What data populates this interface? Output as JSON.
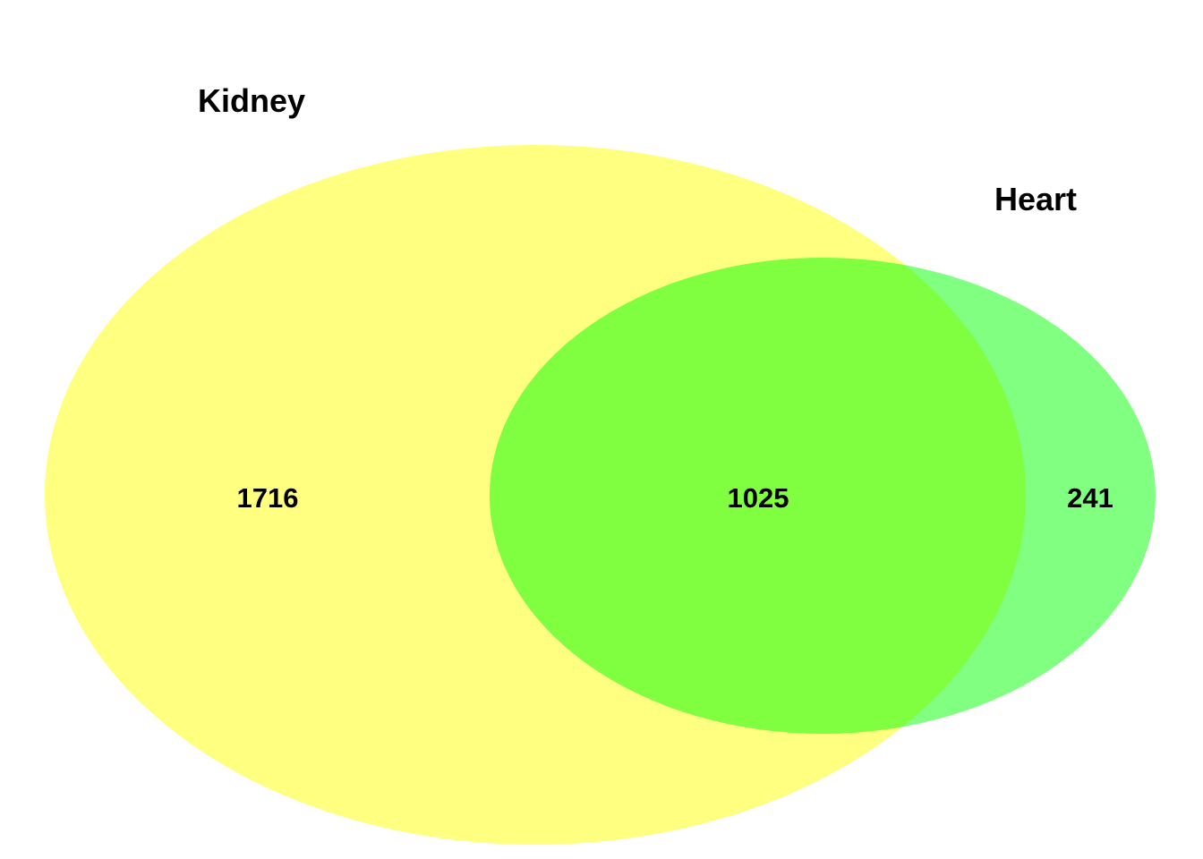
{
  "venn": {
    "sets": [
      {
        "id": "kidney",
        "label": "Kidney",
        "color": "#FFFF80",
        "count_only": "1716"
      },
      {
        "id": "heart",
        "label": "Heart",
        "color": "#80FF80",
        "count_only": "241"
      }
    ],
    "intersection": {
      "count": "1025",
      "color": "#80FF40"
    }
  }
}
